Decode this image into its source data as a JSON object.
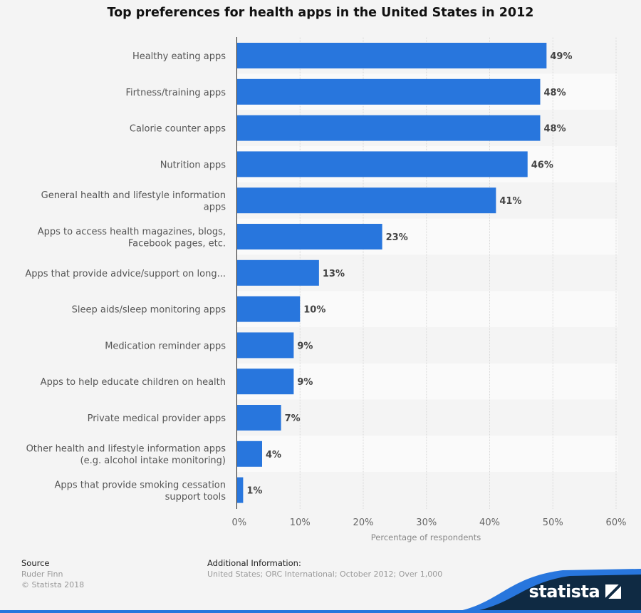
{
  "chart_data": {
    "type": "bar",
    "orientation": "horizontal",
    "title": "Top preferences for health apps in the United States in 2012",
    "xlabel": "Percentage of respondents",
    "ylabel": "",
    "xlim": [
      0,
      60
    ],
    "ticks": [
      "0%",
      "10%",
      "20%",
      "30%",
      "40%",
      "50%",
      "60%"
    ],
    "grid": true,
    "categories": [
      [
        "Healthy eating apps"
      ],
      [
        "Firtness/training apps"
      ],
      [
        "Calorie counter apps"
      ],
      [
        "Nutrition apps"
      ],
      [
        "General health and lifestyle information",
        "apps"
      ],
      [
        "Apps to access health magazines, blogs,",
        "Facebook pages, etc."
      ],
      [
        "Apps that provide advice/support on long..."
      ],
      [
        "Sleep aids/sleep monitoring apps"
      ],
      [
        "Medication reminder apps"
      ],
      [
        "Apps to help educate children on health"
      ],
      [
        "Private medical provider apps"
      ],
      [
        "Other health and lifestyle information apps",
        "(e.g. alcohol intake monitoring)"
      ],
      [
        "Apps that provide smoking cessation",
        "support tools"
      ]
    ],
    "values": [
      49,
      48,
      48,
      46,
      41,
      23,
      13,
      10,
      9,
      9,
      7,
      4,
      1
    ],
    "value_labels": [
      "49%",
      "48%",
      "48%",
      "46%",
      "41%",
      "23%",
      "13%",
      "10%",
      "9%",
      "9%",
      "7%",
      "4%",
      "1%"
    ],
    "bar_color": "#2876dd"
  },
  "footer": {
    "source_heading": "Source",
    "source": "Ruder Finn",
    "copyright": "© Statista 2018",
    "info_heading": "Additional Information:",
    "info": "United States; ORC International; October 2012; Over 1,000"
  },
  "logo": "statista"
}
